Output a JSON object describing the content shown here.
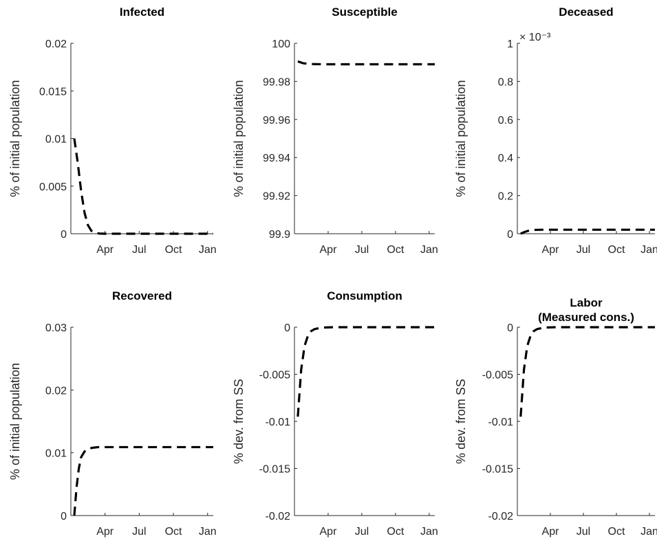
{
  "figure": {
    "line_color": "#000000",
    "line_style": "dashed"
  },
  "chart_data": [
    {
      "type": "line",
      "title": "Infected",
      "ylabel": "% of initial population",
      "xlim": [
        0,
        12.5
      ],
      "ylim": [
        0,
        0.02
      ],
      "yticks": [
        0,
        0.005,
        0.01,
        0.015,
        0.02
      ],
      "ytick_labels": [
        "0",
        "0.005",
        "0.01",
        "0.015",
        "0.02"
      ],
      "xticks": [
        2,
        4,
        6,
        8
      ],
      "xtick_labels": [
        "Apr",
        "Jul",
        "Oct",
        "Jan"
      ],
      "series": [
        {
          "x": [
            0.3,
            0.6,
            0.9,
            1.2,
            1.5,
            1.8,
            2.1,
            2.5,
            3,
            4,
            6,
            8,
            10,
            12,
            12.5
          ],
          "y": [
            0.01,
            0.0075,
            0.0045,
            0.0022,
            0.0009,
            0.0003,
            0.0001,
            2e-05,
            0,
            0,
            0,
            0,
            0,
            0,
            0
          ]
        }
      ]
    },
    {
      "type": "line",
      "title": "Susceptible",
      "ylabel": "% of initial population",
      "xlim": [
        0,
        12.5
      ],
      "ylim": [
        99.9,
        100
      ],
      "yticks": [
        99.9,
        99.92,
        99.94,
        99.96,
        99.98,
        100
      ],
      "ytick_labels": [
        "99.9",
        "99.92",
        "99.94",
        "99.96",
        "99.98",
        "100"
      ],
      "xticks": [
        2,
        4,
        6,
        8
      ],
      "xtick_labels": [
        "Apr",
        "Jul",
        "Oct",
        "Jan"
      ],
      "series": [
        {
          "x": [
            0.3,
            0.8,
            1.5,
            2.5,
            4,
            6,
            8,
            10,
            12.5
          ],
          "y": [
            99.9905,
            99.9895,
            99.9891,
            99.989,
            99.989,
            99.989,
            99.989,
            99.989,
            99.989
          ]
        }
      ]
    },
    {
      "type": "line",
      "title": "Deceased",
      "ylabel": "% of initial population",
      "exponent_label": "× 10⁻³",
      "xlim": [
        0,
        12.5
      ],
      "ylim": [
        0,
        0.001
      ],
      "yticks": [
        0,
        0.0002,
        0.0004,
        0.0006,
        0.0008,
        0.001
      ],
      "ytick_labels": [
        "0",
        "0.2",
        "0.4",
        "0.6",
        "0.8",
        "1"
      ],
      "xticks": [
        2,
        4,
        6,
        8
      ],
      "xtick_labels": [
        "Apr",
        "Jul",
        "Oct",
        "Jan"
      ],
      "series": [
        {
          "x": [
            0.3,
            0.6,
            0.9,
            1.2,
            1.6,
            2.2,
            3,
            4,
            6,
            8,
            10,
            12.5
          ],
          "y": [
            0,
            8e-06,
            1.4e-05,
            1.8e-05,
            2e-05,
            2.1e-05,
            2.1e-05,
            2.1e-05,
            2.1e-05,
            2.1e-05,
            2.1e-05,
            2.1e-05
          ]
        }
      ]
    },
    {
      "type": "line",
      "title": "Recovered",
      "ylabel": "% of initial population",
      "xlim": [
        0,
        12.5
      ],
      "ylim": [
        0,
        0.03
      ],
      "yticks": [
        0,
        0.01,
        0.02,
        0.03
      ],
      "ytick_labels": [
        "0",
        "0.01",
        "0.02",
        "0.03"
      ],
      "xticks": [
        2,
        4,
        6,
        8
      ],
      "xtick_labels": [
        "Apr",
        "Jul",
        "Oct",
        "Jan"
      ],
      "series": [
        {
          "x": [
            0.3,
            0.5,
            0.7,
            0.9,
            1.2,
            1.5,
            1.9,
            2.4,
            3,
            4,
            6,
            8,
            10,
            12.5
          ],
          "y": [
            0,
            0.0045,
            0.0075,
            0.0093,
            0.0102,
            0.0106,
            0.0108,
            0.0109,
            0.0109,
            0.0109,
            0.0109,
            0.0109,
            0.0109,
            0.0109
          ]
        }
      ]
    },
    {
      "type": "line",
      "title": "Consumption",
      "ylabel": "% dev. from SS",
      "xlim": [
        0,
        12.5
      ],
      "ylim": [
        -0.02,
        0
      ],
      "yticks": [
        -0.02,
        -0.015,
        -0.01,
        -0.005,
        0
      ],
      "ytick_labels": [
        "-0.02",
        "-0.015",
        "-0.01",
        "-0.005",
        "0"
      ],
      "xticks": [
        2,
        4,
        6,
        8
      ],
      "xtick_labels": [
        "Apr",
        "Jul",
        "Oct",
        "Jan"
      ],
      "series": [
        {
          "x": [
            0.3,
            0.6,
            0.9,
            1.2,
            1.5,
            1.8,
            2.2,
            2.7,
            3.5,
            5,
            8,
            10,
            12.5
          ],
          "y": [
            -0.0095,
            -0.0045,
            -0.002,
            -0.0009,
            -0.0004,
            -0.0002,
            -0.0001,
            -3e-05,
            0,
            0,
            0,
            0,
            0
          ]
        }
      ]
    },
    {
      "type": "line",
      "title": "Labor",
      "subtitle": "(Measured cons.)",
      "ylabel": "% dev. from SS",
      "xlim": [
        0,
        12.5
      ],
      "ylim": [
        -0.02,
        0
      ],
      "yticks": [
        -0.02,
        -0.015,
        -0.01,
        -0.005,
        0
      ],
      "ytick_labels": [
        "-0.02",
        "-0.015",
        "-0.01",
        "-0.005",
        "0"
      ],
      "xticks": [
        2,
        4,
        6,
        8
      ],
      "xtick_labels": [
        "Apr",
        "Jul",
        "Oct",
        "Jan"
      ],
      "series": [
        {
          "x": [
            0.3,
            0.6,
            0.9,
            1.2,
            1.5,
            1.8,
            2.2,
            2.7,
            3.5,
            5,
            8,
            10,
            12.5
          ],
          "y": [
            -0.0095,
            -0.0045,
            -0.002,
            -0.0009,
            -0.0004,
            -0.0002,
            -0.0001,
            -3e-05,
            0,
            0,
            0,
            0,
            0
          ]
        }
      ]
    }
  ]
}
